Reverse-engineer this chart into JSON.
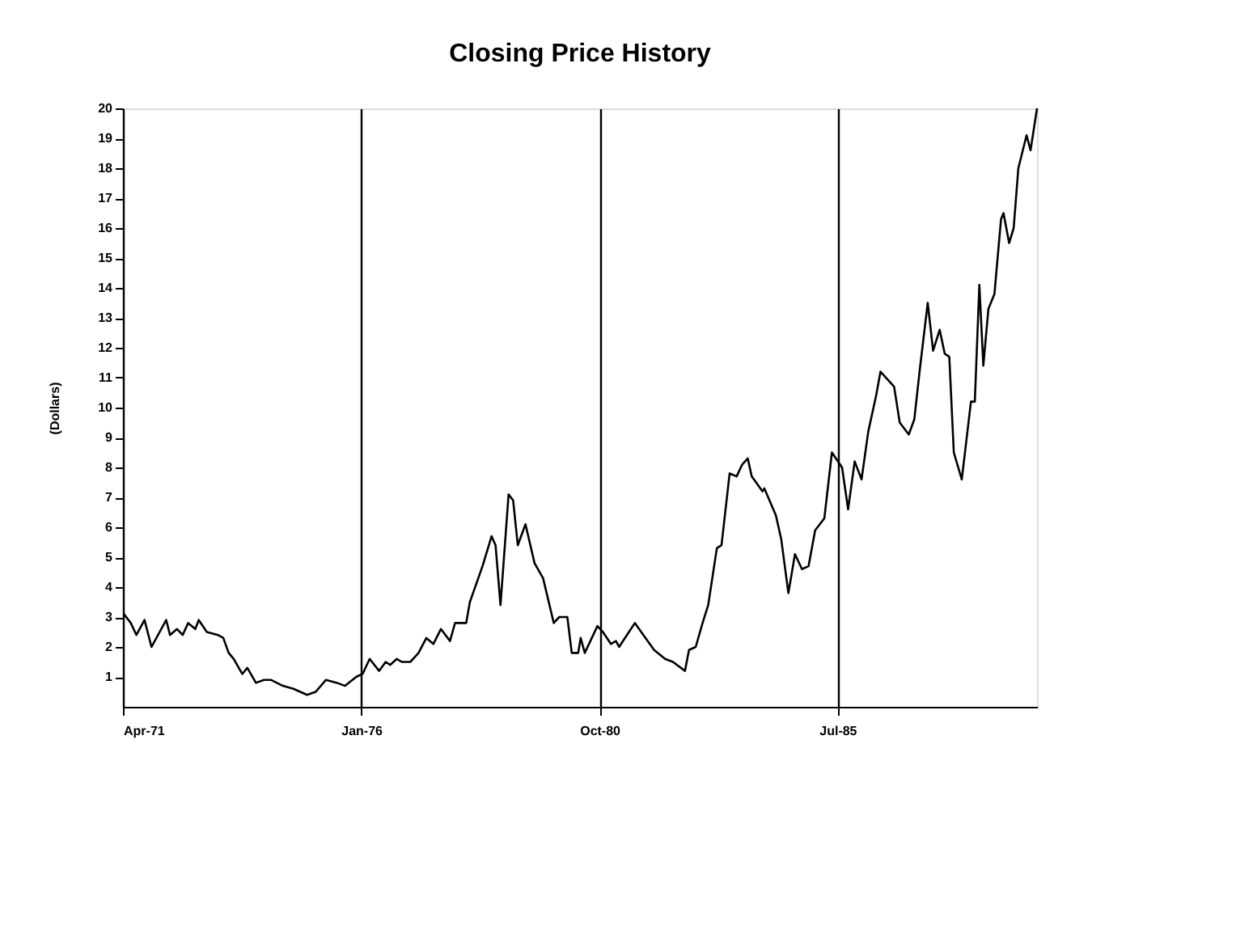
{
  "chart_data": {
    "type": "line",
    "title": "Closing Price History",
    "ylabel": "(Dollars)",
    "x": [
      "1971-04-08",
      "1971-05-28",
      "1971-07-08",
      "1971-09-05",
      "1971-10-26",
      "1972-02-10",
      "1972-03-09",
      "1972-04-29",
      "1972-06-09",
      "1972-07-19",
      "1972-09-09",
      "1972-10-04",
      "1972-12-02",
      "1973-02-21",
      "1973-04-01",
      "1973-05-10",
      "1973-06-16",
      "1973-08-17",
      "1973-09-23",
      "1973-11-25",
      "1974-01-22",
      "1974-03-13",
      "1974-06-09",
      "1974-08-25",
      "1974-12-02",
      "1975-02-03",
      "1975-04-19",
      "1975-07-08",
      "1975-09-05",
      "1975-11-25",
      "1976-01-11",
      "1976-03-02",
      "1976-05-10",
      "1976-06-27",
      "1976-07-29",
      "1976-09-16",
      "1976-10-22",
      "1976-12-23",
      "1977-02-21",
      "1977-04-19",
      "1977-06-09",
      "1977-08-03",
      "1977-10-08",
      "1977-11-14",
      "1978-02-03",
      "1978-03-02",
      "1978-06-02",
      "1978-08-07",
      "1978-09-05",
      "1978-10-11",
      "1978-12-09",
      "1979-01-11",
      "1979-02-14",
      "1979-04-11",
      "1979-06-16",
      "1979-08-17",
      "1979-11-03",
      "1979-12-13",
      "1980-02-10",
      "1980-03-13",
      "1980-04-29",
      "1980-05-17",
      "1980-06-16",
      "1980-09-16",
      "1980-10-26",
      "1980-12-23",
      "1981-01-29",
      "1981-02-21",
      "1981-04-19",
      "1981-06-16",
      "1981-08-17",
      "1981-11-03",
      "1982-01-22",
      "1982-03-20",
      "1982-06-16",
      "1982-07-15",
      "1982-09-02",
      "1982-10-22",
      "1982-12-02",
      "1983-02-03",
      "1983-03-09",
      "1983-05-07",
      "1983-06-27",
      "1983-08-07",
      "1983-09-16",
      "1983-10-15",
      "1984-01-01",
      "1984-01-15",
      "1984-04-08",
      "1984-05-17",
      "1984-07-08",
      "1984-08-25",
      "1984-10-15",
      "1984-12-02",
      "1985-01-19",
      "1985-03-27",
      "1985-05-21",
      "1985-08-03",
      "1985-09-16",
      "1985-11-03",
      "1985-12-23",
      "1986-02-10",
      "1986-04-08",
      "1986-05-10",
      "1986-08-17",
      "1986-09-27",
      "1986-12-02",
      "1987-01-11",
      "1987-02-21",
      "1987-04-19",
      "1987-05-28",
      "1987-07-15",
      "1987-08-21",
      "1987-09-23",
      "1987-10-26",
      "1987-12-23",
      "1988-02-28",
      "1988-03-27",
      "1988-04-29",
      "1988-05-28",
      "1988-07-04",
      "1988-08-17",
      "1988-10-04",
      "1988-10-22",
      "1988-12-02",
      "1989-01-04",
      "1989-02-07",
      "1989-04-08",
      "1989-05-07",
      "1989-06-23"
    ],
    "series": [
      {
        "color": "#000000",
        "values": [
          3.1,
          2.8,
          2.4,
          2.9,
          2.0,
          2.9,
          2.4,
          2.6,
          2.4,
          2.8,
          2.6,
          2.9,
          2.5,
          2.4,
          2.3,
          1.8,
          1.6,
          1.1,
          1.3,
          0.8,
          0.9,
          0.9,
          0.7,
          0.6,
          0.4,
          0.5,
          0.9,
          0.8,
          0.7,
          1.0,
          1.1,
          1.6,
          1.2,
          1.5,
          1.4,
          1.6,
          1.5,
          1.5,
          1.8,
          2.3,
          2.1,
          2.6,
          2.2,
          2.8,
          2.8,
          3.5,
          4.7,
          5.7,
          5.4,
          3.4,
          7.1,
          6.9,
          5.4,
          6.1,
          4.8,
          4.3,
          2.8,
          3.0,
          3.0,
          1.8,
          1.8,
          2.3,
          1.8,
          2.7,
          2.5,
          2.1,
          2.2,
          2.0,
          2.4,
          2.8,
          2.4,
          1.9,
          1.6,
          1.5,
          1.2,
          1.9,
          2.0,
          2.8,
          3.4,
          5.3,
          5.4,
          7.8,
          7.7,
          8.1,
          8.3,
          7.7,
          7.2,
          7.3,
          6.4,
          5.6,
          3.8,
          5.1,
          4.6,
          4.7,
          5.9,
          6.3,
          8.5,
          8.0,
          6.6,
          8.2,
          7.6,
          9.2,
          10.4,
          11.2,
          10.7,
          9.5,
          9.1,
          9.6,
          11.3,
          13.5,
          11.9,
          12.6,
          11.8,
          11.7,
          8.5,
          7.6,
          10.2,
          10.2,
          14.1,
          11.4,
          13.3,
          13.8,
          16.3,
          16.5,
          15.5,
          16.0,
          18.0,
          19.1,
          18.6,
          20.0
        ]
      }
    ],
    "xlim": [
      "1971-04-01",
      "1989-06-23"
    ],
    "xticks": [
      {
        "value": "1971-04-01",
        "label": "Apr-71"
      },
      {
        "value": "1976-01-01",
        "label": "Jan-76"
      },
      {
        "value": "1980-10-01",
        "label": "Oct-80"
      },
      {
        "value": "1985-07-01",
        "label": "Jul-85"
      }
    ],
    "ylim": [
      0,
      20
    ],
    "yticks": [
      1,
      2,
      3,
      4,
      5,
      6,
      7,
      8,
      9,
      10,
      11,
      12,
      13,
      14,
      15,
      16,
      17,
      18,
      19,
      20
    ],
    "grid": "x",
    "marker": "none",
    "line_style": "solid"
  }
}
